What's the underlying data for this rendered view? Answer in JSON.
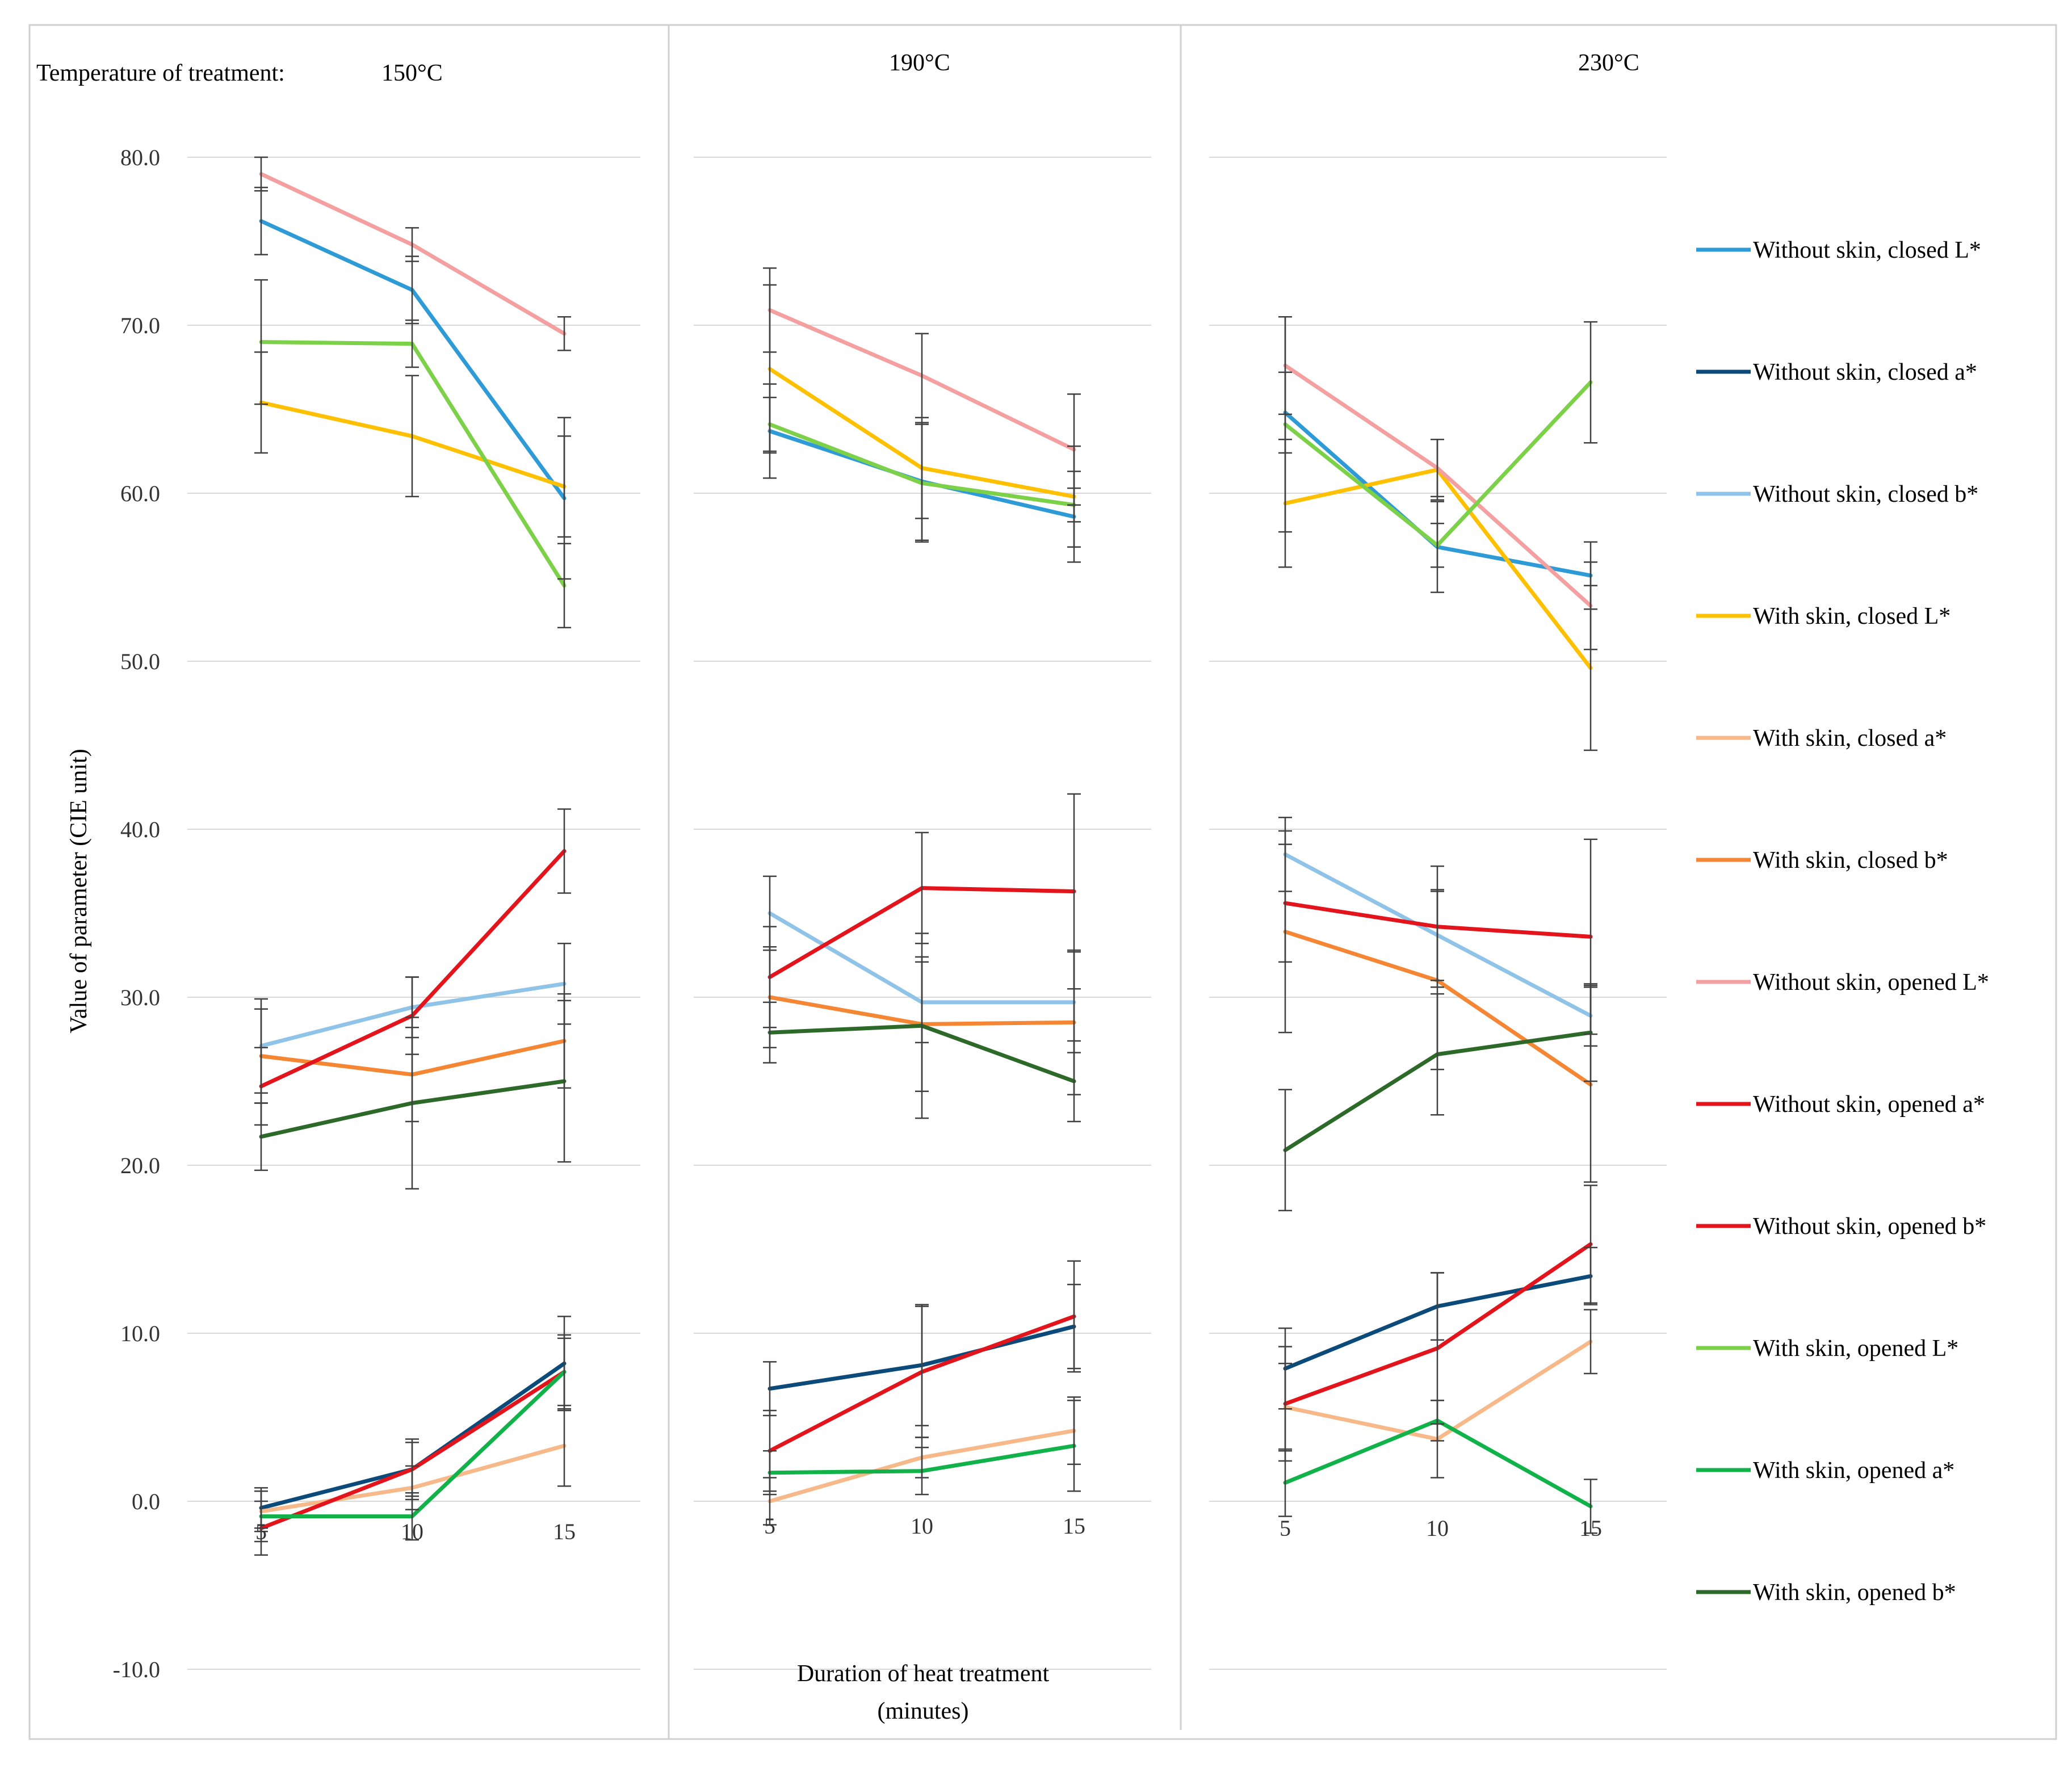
{
  "chart_data": {
    "type": "line",
    "title": "",
    "temperature_label": "Temperature of treatment:",
    "ylabel": "Value of parameter (CIE unit)",
    "xlabel_line1": "Duration of heat treatment",
    "xlabel_line2": "(minutes)",
    "ylim": [
      -10,
      80
    ],
    "yticks": [
      "80.0",
      "70.0",
      "60.0",
      "50.0",
      "40.0",
      "30.0",
      "20.0",
      "10.0",
      "0.0",
      "-10.0"
    ],
    "yticks_values": [
      80,
      70,
      60,
      50,
      40,
      30,
      20,
      10,
      0,
      -10
    ],
    "x": [
      5,
      10,
      15
    ],
    "x_labels": [
      "5",
      "10",
      "15"
    ],
    "panels": [
      {
        "temperature": "150°C",
        "series": [
          {
            "name": "Without skin, closed L*",
            "values": [
              76.2,
              72.1,
              59.7
            ],
            "errors": [
              2.0,
              2.0,
              4.8
            ]
          },
          {
            "name": "Without skin, closed a*",
            "values": [
              -0.4,
              1.9,
              8.2
            ],
            "errors": [
              1.2,
              1.6,
              2.8
            ]
          },
          {
            "name": "Without skin, closed b*",
            "values": [
              27.1,
              29.4,
              30.8
            ],
            "errors": [
              2.8,
              1.8,
              2.4
            ]
          },
          {
            "name": "With skin, closed L*",
            "values": [
              65.4,
              63.4,
              60.4
            ],
            "errors": [
              3.0,
              3.6,
              3.0
            ]
          },
          {
            "name": "With skin, closed a*",
            "values": [
              -0.6,
              0.8,
              3.3
            ],
            "errors": [
              1.2,
              1.3,
              2.4
            ]
          },
          {
            "name": "With skin, closed b*",
            "values": [
              26.5,
              25.4,
              27.4
            ],
            "errors": [
              2.8,
              2.8,
              2.8
            ]
          },
          {
            "name": "Without skin, opened L*",
            "values": [
              79.0,
              74.8,
              69.5
            ],
            "errors": [
              1.0,
              1.0,
              1.0
            ]
          },
          {
            "name": "Without skin, opened a*",
            "values": [
              24.7,
              28.9,
              38.7
            ],
            "errors": [
              2.3,
              2.3,
              2.5
            ]
          },
          {
            "name": "Without skin, opened b*",
            "values": [
              -1.6,
              1.9,
              7.7
            ],
            "errors": [
              1.6,
              1.8,
              2.2
            ]
          },
          {
            "name": "With skin, opened L*",
            "values": [
              69.0,
              68.9,
              54.5
            ],
            "errors": [
              3.7,
              1.4,
              2.5
            ]
          },
          {
            "name": "With skin, opened a*",
            "values": [
              -0.9,
              -0.9,
              7.7
            ],
            "errors": [
              1.5,
              1.4,
              2.0
            ]
          },
          {
            "name": "With skin, opened b*",
            "values": [
              21.7,
              23.7,
              25.0
            ],
            "errors": [
              2.0,
              5.1,
              4.8
            ]
          }
        ]
      },
      {
        "temperature": "190°C",
        "series": [
          {
            "name": "Without skin, closed L*",
            "values": [
              63.7,
              60.7,
              58.6
            ],
            "errors": [
              2.8,
              3.5,
              2.7
            ]
          },
          {
            "name": "Without skin, closed a*",
            "values": [
              6.7,
              8.1,
              10.4
            ],
            "errors": [
              1.6,
              3.6,
              2.5
            ]
          },
          {
            "name": "Without skin, closed b*",
            "values": [
              35.0,
              29.7,
              29.7
            ],
            "errors": [
              2.2,
              2.4,
              3.0
            ]
          },
          {
            "name": "With skin, closed L*",
            "values": [
              67.4,
              61.5,
              59.8
            ],
            "errors": [
              5.0,
              3.0,
              3.0
            ]
          },
          {
            "name": "With skin, closed a*",
            "values": [
              0.0,
              2.6,
              4.2
            ],
            "errors": [
              1.4,
              1.2,
              2.0
            ]
          },
          {
            "name": "With skin, closed b*",
            "values": [
              30.0,
              28.4,
              28.5
            ],
            "errors": [
              3.0,
              4.0,
              4.3
            ]
          },
          {
            "name": "Without skin, opened L*",
            "values": [
              70.9,
              67.0,
              62.6
            ],
            "errors": [
              2.5,
              2.5,
              3.3
            ]
          },
          {
            "name": "Without skin, opened a*",
            "values": [
              31.2,
              36.5,
              36.3
            ],
            "errors": [
              3.0,
              3.3,
              5.8
            ]
          },
          {
            "name": "Without skin, opened b*",
            "values": [
              3.0,
              7.7,
              11.0
            ],
            "errors": [
              2.4,
              3.9,
              3.3
            ]
          },
          {
            "name": "With skin, opened L*",
            "values": [
              64.1,
              60.6,
              59.3
            ],
            "errors": [
              1.6,
              3.5,
              1.0
            ]
          },
          {
            "name": "With skin, opened a*",
            "values": [
              1.7,
              1.8,
              3.3
            ],
            "errors": [
              1.3,
              1.4,
              2.7
            ]
          },
          {
            "name": "With skin, opened b*",
            "values": [
              27.9,
              28.3,
              25.0
            ],
            "errors": [
              1.8,
              5.5,
              2.4
            ]
          }
        ]
      },
      {
        "temperature": "230°C",
        "series": [
          {
            "name": "Without skin, closed L*",
            "values": [
              64.8,
              56.8,
              55.1
            ],
            "errors": [
              2.4,
              2.7,
              2.0
            ]
          },
          {
            "name": "Without skin, closed a*",
            "values": [
              7.9,
              11.6,
              13.4
            ],
            "errors": [
              2.4,
              2.0,
              1.7
            ]
          },
          {
            "name": "Without skin, closed b*",
            "values": [
              38.5,
              33.7,
              28.9
            ],
            "errors": [
              2.2,
              2.7,
              1.8
            ]
          },
          {
            "name": "With skin, closed L*",
            "values": [
              59.4,
              61.4,
              49.6
            ],
            "errors": [
              3.8,
              1.8,
              4.9
            ]
          },
          {
            "name": "With skin, closed a*",
            "values": [
              5.6,
              3.7,
              9.5
            ],
            "errors": [
              2.6,
              2.3,
              1.9
            ]
          },
          {
            "name": "With skin, closed b*",
            "values": [
              33.9,
              31.0,
              24.8
            ],
            "errors": [
              6.0,
              5.3,
              5.8
            ]
          },
          {
            "name": "Without skin, opened L*",
            "values": [
              67.6,
              61.5,
              53.3
            ],
            "errors": [
              2.9,
              1.7,
              2.6
            ]
          },
          {
            "name": "Without skin, opened a*",
            "values": [
              35.6,
              34.2,
              33.6
            ],
            "errors": [
              3.5,
              3.6,
              5.8
            ]
          },
          {
            "name": "Without skin, opened b*",
            "values": [
              5.8,
              9.1,
              15.3
            ],
            "errors": [
              3.4,
              4.5,
              3.5
            ]
          },
          {
            "name": "With skin, opened L*",
            "values": [
              64.1,
              56.9,
              66.6
            ],
            "errors": [
              6.4,
              1.3,
              3.6
            ]
          },
          {
            "name": "With skin, opened a*",
            "values": [
              1.1,
              4.8,
              -0.3
            ],
            "errors": [
              2.0,
              1.2,
              1.6
            ]
          },
          {
            "name": "With skin, opened b*",
            "values": [
              20.9,
              26.6,
              27.9
            ],
            "errors": [
              3.6,
              3.6,
              2.9
            ]
          }
        ]
      }
    ],
    "legend": [
      {
        "name": "Without skin, closed L*",
        "color": "#2E9BD6"
      },
      {
        "name": "Without skin, closed a*",
        "color": "#0B4A79"
      },
      {
        "name": "Without skin, closed b*",
        "color": "#8FC4E8"
      },
      {
        "name": "With skin, closed L*",
        "color": "#FFC000"
      },
      {
        "name": "With skin, closed a*",
        "color": "#F8B98A"
      },
      {
        "name": "With skin, closed b*",
        "color": "#F58634"
      },
      {
        "name": "Without skin, opened L*",
        "color": "#F4A0A0"
      },
      {
        "name": "Without skin, opened a*",
        "color": "#E3141B"
      },
      {
        "name": "Without skin, opened b*",
        "color": "#E3141B"
      },
      {
        "name": "With skin, opened L*",
        "color": "#7DD148"
      },
      {
        "name": "With skin, opened a*",
        "color": "#12B24B"
      },
      {
        "name": "With skin, opened b*",
        "color": "#2D6A2A"
      }
    ],
    "legend_position": "right",
    "grid": true
  }
}
